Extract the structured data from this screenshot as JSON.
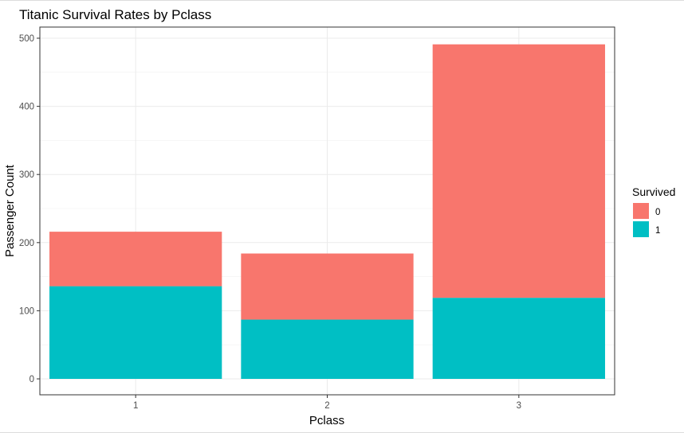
{
  "chart_data": {
    "type": "bar",
    "stacked": true,
    "title": "Titanic Survival Rates by Pclass",
    "xlabel": "Pclass",
    "ylabel": "Passenger Count",
    "categories": [
      "1",
      "2",
      "3"
    ],
    "series": [
      {
        "name": "0",
        "values": [
          80,
          97,
          372
        ],
        "color": "#F8766D"
      },
      {
        "name": "1",
        "values": [
          136,
          87,
          119
        ],
        "color": "#00BFC4"
      }
    ],
    "stack_order_bottom_to_top": [
      "1",
      "0"
    ],
    "ylim": [
      0,
      500
    ],
    "yticks": [
      0,
      100,
      200,
      300,
      400,
      500
    ],
    "ytick_labels": [
      "0",
      "100",
      "200",
      "300",
      "400",
      "500"
    ],
    "xtick_labels": [
      "1",
      "2",
      "3"
    ],
    "grid": true,
    "legend": {
      "title": "Survived",
      "position": "right",
      "entries": [
        {
          "label": "0",
          "color": "#F8766D"
        },
        {
          "label": "1",
          "color": "#00BFC4"
        }
      ]
    }
  }
}
